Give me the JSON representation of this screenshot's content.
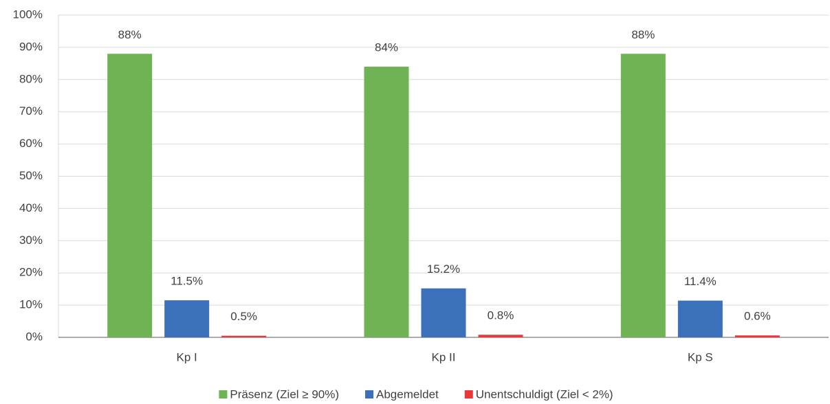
{
  "chart_data": {
    "type": "bar",
    "categories": [
      "Kp I",
      "Kp II",
      "Kp S"
    ],
    "series": [
      {
        "name": "Präsenz (Ziel ≥ 90%)",
        "color": "#6fb354",
        "values": [
          88,
          84,
          88
        ],
        "value_labels": [
          "88%",
          "84%",
          "88%"
        ]
      },
      {
        "name": "Abgemeldet",
        "color": "#3b70bb",
        "values": [
          11.5,
          15.2,
          11.4
        ],
        "value_labels": [
          "11.5%",
          "15.2%",
          "11.4%"
        ]
      },
      {
        "name": "Unentschuldigt (Ziel < 2%)",
        "color": "#e8383b",
        "values": [
          0.5,
          0.8,
          0.6
        ],
        "value_labels": [
          "0.5%",
          "0.8%",
          "0.6%"
        ]
      }
    ],
    "ylim": [
      0,
      100
    ],
    "yticks": [
      {
        "value": 0,
        "label": "0%"
      },
      {
        "value": 10,
        "label": "10%"
      },
      {
        "value": 20,
        "label": "20%"
      },
      {
        "value": 30,
        "label": "30%"
      },
      {
        "value": 40,
        "label": "40%"
      },
      {
        "value": 50,
        "label": "50%"
      },
      {
        "value": 60,
        "label": "60%"
      },
      {
        "value": 70,
        "label": "70%"
      },
      {
        "value": 80,
        "label": "80%"
      },
      {
        "value": 90,
        "label": "90%"
      },
      {
        "value": 100,
        "label": "100%"
      }
    ],
    "grid": true,
    "legend": "bottom"
  }
}
